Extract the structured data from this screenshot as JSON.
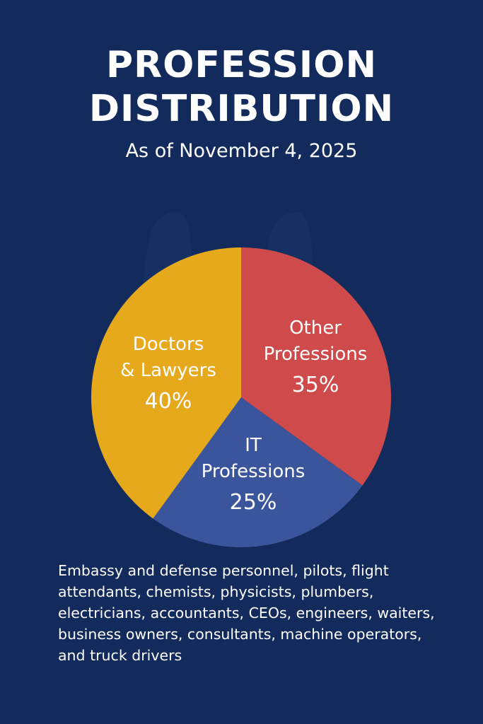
{
  "title_line1": "PROFESSION",
  "title_line2": "DISTRIBUTION",
  "subtitle": "As of November 4, 2025",
  "colors": {
    "background": "#132a5c",
    "doctors_lawyers": "#e6a91c",
    "other": "#cf4b4b",
    "it": "#3a559b"
  },
  "chart_data": {
    "type": "pie",
    "slices": [
      {
        "label_lines": [
          "Other",
          "Professions"
        ],
        "value": 35,
        "value_label": "35%",
        "color": "#cf4b4b"
      },
      {
        "label_lines": [
          "IT",
          "Professions"
        ],
        "value": 25,
        "value_label": "25%",
        "color": "#3a559b"
      },
      {
        "label_lines": [
          "Doctors",
          "& Lawyers"
        ],
        "value": 40,
        "value_label": "40%",
        "color": "#e6a91c"
      }
    ]
  },
  "footnote": "Embassy and defense personnel, pilots, flight attendants, chemists, physicists, plumbers, electricians, accountants, CEOs, engineers, waiters, business owners, consultants, machine operators, and truck drivers"
}
